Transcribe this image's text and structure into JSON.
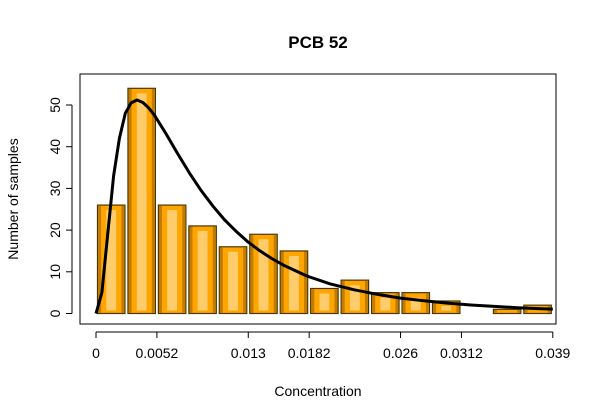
{
  "chart_data": {
    "type": "bar",
    "title": "PCB 52",
    "xlabel": "Concentration",
    "ylabel": "Number of samples",
    "bin_width": 0.0026,
    "x_range": [
      0,
      0.0416
    ],
    "ylim": [
      0,
      54
    ],
    "x_ticks": [
      {
        "value": 0,
        "label": "0"
      },
      {
        "value": 0.0052,
        "label": "0.0052"
      },
      {
        "value": 0.013,
        "label": "0.013"
      },
      {
        "value": 0.0182,
        "label": "0.0182"
      },
      {
        "value": 0.026,
        "label": "0.026"
      },
      {
        "value": 0.0312,
        "label": "0.0312"
      },
      {
        "value": 0.039,
        "label": "0.039"
      }
    ],
    "y_ticks": [
      {
        "value": 0,
        "label": "0"
      },
      {
        "value": 10,
        "label": "10"
      },
      {
        "value": 20,
        "label": "20"
      },
      {
        "value": 30,
        "label": "30"
      },
      {
        "value": 40,
        "label": "40"
      },
      {
        "value": 50,
        "label": "50"
      }
    ],
    "bars": [
      {
        "x0": 0.0,
        "x1": 0.0026,
        "count": 26
      },
      {
        "x0": 0.0026,
        "x1": 0.0052,
        "count": 54
      },
      {
        "x0": 0.0052,
        "x1": 0.0078,
        "count": 26
      },
      {
        "x0": 0.0078,
        "x1": 0.0104,
        "count": 21
      },
      {
        "x0": 0.0104,
        "x1": 0.013,
        "count": 16
      },
      {
        "x0": 0.013,
        "x1": 0.0156,
        "count": 19
      },
      {
        "x0": 0.0156,
        "x1": 0.0182,
        "count": 15
      },
      {
        "x0": 0.0182,
        "x1": 0.0208,
        "count": 6
      },
      {
        "x0": 0.0208,
        "x1": 0.0234,
        "count": 8
      },
      {
        "x0": 0.0234,
        "x1": 0.026,
        "count": 5
      },
      {
        "x0": 0.026,
        "x1": 0.0286,
        "count": 5
      },
      {
        "x0": 0.0286,
        "x1": 0.0312,
        "count": 3
      },
      {
        "x0": 0.0312,
        "x1": 0.0338,
        "count": 0
      },
      {
        "x0": 0.0338,
        "x1": 0.0364,
        "count": 1
      },
      {
        "x0": 0.0364,
        "x1": 0.039,
        "count": 2
      }
    ],
    "fitted_curve": {
      "x": [
        0,
        0.0005,
        0.001,
        0.0015,
        0.002,
        0.0025,
        0.003,
        0.0035,
        0.004,
        0.0045,
        0.005,
        0.006,
        0.007,
        0.008,
        0.009,
        0.01,
        0.011,
        0.012,
        0.013,
        0.014,
        0.015,
        0.016,
        0.018,
        0.02,
        0.022,
        0.024,
        0.026,
        0.028,
        0.03,
        0.032,
        0.034,
        0.036,
        0.038,
        0.039
      ],
      "y": [
        0,
        5,
        19,
        33,
        42,
        48,
        50.5,
        51.2,
        50.6,
        49.3,
        47.5,
        43,
        38.2,
        33.6,
        29.4,
        25.7,
        22.4,
        19.6,
        17.1,
        15,
        13.2,
        11.6,
        9,
        7.1,
        5.7,
        4.6,
        3.7,
        3.05,
        2.5,
        2.05,
        1.7,
        1.4,
        1.15,
        1.05
      ]
    },
    "colors": {
      "bar_fill": "#FFA500",
      "bar_border": "#4D3500",
      "bar_highlight": "#FFD27F",
      "curve": "#000000"
    }
  }
}
